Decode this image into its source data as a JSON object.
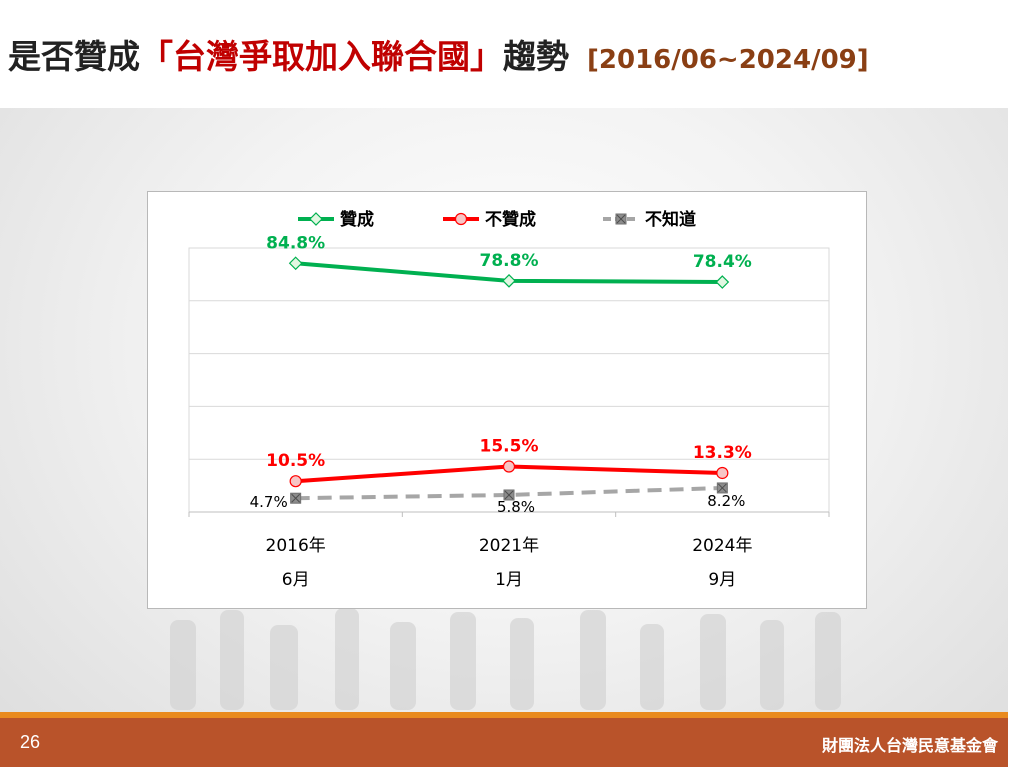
{
  "header": {
    "title_prefix": "是否贊成",
    "title_highlight": "「台灣爭取加入聯合國」",
    "title_suffix": "趨勢",
    "date_range": "[2016/06~2024/09]"
  },
  "footer": {
    "page_number": "26",
    "organization": "財團法人台灣民意基金會"
  },
  "colors": {
    "approve": "#00b050",
    "disapprove": "#ff0000",
    "unknown": "#a6a6a6",
    "title_highlight": "#c00000",
    "date_range": "#8a3f14",
    "footer": "#b9532a",
    "footer_line": "#e98a1e"
  },
  "chart_data": {
    "type": "line",
    "categories": [
      [
        "2016年",
        "6月"
      ],
      [
        "2021年",
        "1月"
      ],
      [
        "2024年",
        "9月"
      ]
    ],
    "ylim": [
      0,
      90
    ],
    "grid": true,
    "legend_position": "top",
    "series": [
      {
        "name": "贊成",
        "values": [
          84.8,
          78.8,
          78.4
        ],
        "labels": [
          "84.8%",
          "78.8%",
          "78.4%"
        ],
        "color": "#00b050",
        "marker": "diamond",
        "dashed": false
      },
      {
        "name": "不贊成",
        "values": [
          10.5,
          15.5,
          13.3
        ],
        "labels": [
          "10.5%",
          "15.5%",
          "13.3%"
        ],
        "color": "#ff0000",
        "marker": "circle",
        "dashed": false
      },
      {
        "name": "不知道",
        "values": [
          4.7,
          5.8,
          8.2
        ],
        "labels": [
          "4.7%",
          "5.8%",
          "8.2%"
        ],
        "color": "#a6a6a6",
        "marker": "x-square",
        "dashed": true
      }
    ]
  }
}
